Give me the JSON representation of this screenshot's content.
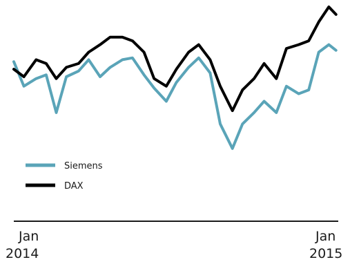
{
  "chart_data": {
    "type": "line",
    "title": "",
    "xlabel": "",
    "ylabel": "",
    "x_ticks": [
      {
        "month": "Jan",
        "year": "2014",
        "date": "2014-01"
      },
      {
        "month": "Jan",
        "year": "2015",
        "date": "2015-01"
      }
    ],
    "x_range": [
      "2014-01-01",
      "2015-03-31"
    ],
    "ylim": [
      0,
      100
    ],
    "y_axis_shown": false,
    "grid": false,
    "legend_position": "bottom-left",
    "series": [
      {
        "name": "Siemens",
        "color": "#5aa4b8",
        "dates": [
          "2014-01-01",
          "2014-01-15",
          "2014-02-01",
          "2014-02-15",
          "2014-03-01",
          "2014-03-15",
          "2014-04-01",
          "2014-04-15",
          "2014-05-01",
          "2014-05-15",
          "2014-06-01",
          "2014-06-15",
          "2014-07-01",
          "2014-07-15",
          "2014-08-01",
          "2014-08-15",
          "2014-09-01",
          "2014-09-15",
          "2014-10-01",
          "2014-10-15",
          "2014-11-01",
          "2014-11-15",
          "2014-12-01",
          "2014-12-15",
          "2015-01-01",
          "2015-01-15",
          "2015-02-01",
          "2015-02-15",
          "2015-03-01",
          "2015-03-15",
          "2015-03-25"
        ],
        "values": [
          71,
          58,
          62,
          64,
          44,
          63,
          66,
          72,
          63,
          68,
          72,
          73,
          64,
          57,
          50,
          60,
          68,
          73,
          65,
          38,
          25,
          38,
          44,
          50,
          44,
          58,
          54,
          56,
          76,
          80,
          77
        ]
      },
      {
        "name": "DAX",
        "color": "#000000",
        "dates": [
          "2014-01-01",
          "2014-01-15",
          "2014-02-01",
          "2014-02-15",
          "2014-03-01",
          "2014-03-15",
          "2014-04-01",
          "2014-04-15",
          "2014-05-01",
          "2014-05-15",
          "2014-06-01",
          "2014-06-15",
          "2014-07-01",
          "2014-07-15",
          "2014-08-01",
          "2014-08-15",
          "2014-09-01",
          "2014-09-15",
          "2014-10-01",
          "2014-10-15",
          "2014-11-01",
          "2014-11-15",
          "2014-12-01",
          "2014-12-15",
          "2015-01-01",
          "2015-01-15",
          "2015-02-01",
          "2015-02-15",
          "2015-03-01",
          "2015-03-15",
          "2015-03-25"
        ],
        "values": [
          67,
          63,
          72,
          70,
          62,
          68,
          70,
          76,
          80,
          84,
          84,
          82,
          76,
          62,
          58,
          67,
          76,
          80,
          72,
          58,
          45,
          56,
          62,
          70,
          62,
          78,
          80,
          82,
          92,
          100,
          96
        ]
      }
    ]
  }
}
